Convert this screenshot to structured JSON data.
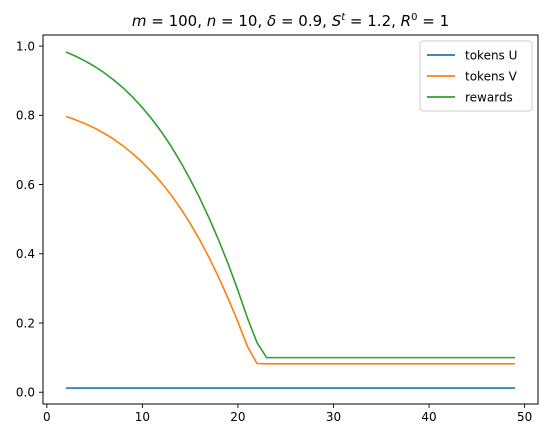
{
  "chart_data": {
    "type": "line",
    "title_parts": [
      {
        "t": "m",
        "style": "italic"
      },
      {
        "t": " = 100, "
      },
      {
        "t": "n",
        "style": "italic"
      },
      {
        "t": " = 10, "
      },
      {
        "t": "δ",
        "style": "italic"
      },
      {
        "t": " = 0.9, "
      },
      {
        "t": "S",
        "style": "italic"
      },
      {
        "t": "t",
        "style": "italic",
        "sup": true
      },
      {
        "t": " = 1.2, "
      },
      {
        "t": "R",
        "style": "italic"
      },
      {
        "t": "0",
        "sup": true
      },
      {
        "t": " = 1"
      }
    ],
    "xlim": [
      -0.4,
      51.4
    ],
    "ylim": [
      -0.034,
      1.032
    ],
    "xticks": [
      0,
      10,
      20,
      30,
      40,
      50
    ],
    "xtick_labels": [
      "0",
      "10",
      "20",
      "30",
      "40",
      "50"
    ],
    "yticks": [
      0.0,
      0.2,
      0.4,
      0.6,
      0.8,
      1.0
    ],
    "ytick_labels": [
      "0.0",
      "0.2",
      "0.4",
      "0.6",
      "0.8",
      "1.0"
    ],
    "legend_position": "top-right",
    "series": [
      {
        "name": "tokens U",
        "color": "#1f77b4",
        "x": [
          2,
          5,
          10,
          15,
          20,
          23,
          25,
          30,
          35,
          40,
          45,
          49
        ],
        "y": [
          0.012,
          0.012,
          0.012,
          0.012,
          0.012,
          0.012,
          0.012,
          0.012,
          0.012,
          0.012,
          0.012,
          0.012
        ]
      },
      {
        "name": "tokens V",
        "color": "#ff7f0e",
        "x": [
          2,
          3,
          4,
          5,
          6,
          7,
          8,
          9,
          10,
          11,
          12,
          13,
          14,
          15,
          16,
          17,
          18,
          19,
          20,
          21,
          22,
          23,
          25,
          30,
          35,
          40,
          45,
          49
        ],
        "y": [
          0.797,
          0.787,
          0.776,
          0.763,
          0.748,
          0.731,
          0.711,
          0.689,
          0.664,
          0.636,
          0.605,
          0.57,
          0.531,
          0.488,
          0.44,
          0.388,
          0.331,
          0.269,
          0.203,
          0.132,
          0.083,
          0.082,
          0.082,
          0.082,
          0.082,
          0.082,
          0.082,
          0.082
        ]
      },
      {
        "name": "rewards",
        "color": "#2ca02c",
        "x": [
          2,
          3,
          4,
          5,
          6,
          7,
          8,
          9,
          10,
          11,
          12,
          13,
          14,
          15,
          16,
          17,
          18,
          19,
          20,
          21,
          22,
          23,
          25,
          30,
          35,
          40,
          45,
          49
        ],
        "y": [
          0.983,
          0.971,
          0.957,
          0.941,
          0.923,
          0.902,
          0.879,
          0.852,
          0.822,
          0.789,
          0.752,
          0.711,
          0.665,
          0.615,
          0.561,
          0.502,
          0.438,
          0.369,
          0.294,
          0.214,
          0.143,
          0.1,
          0.1,
          0.1,
          0.1,
          0.1,
          0.1,
          0.1
        ]
      }
    ]
  }
}
